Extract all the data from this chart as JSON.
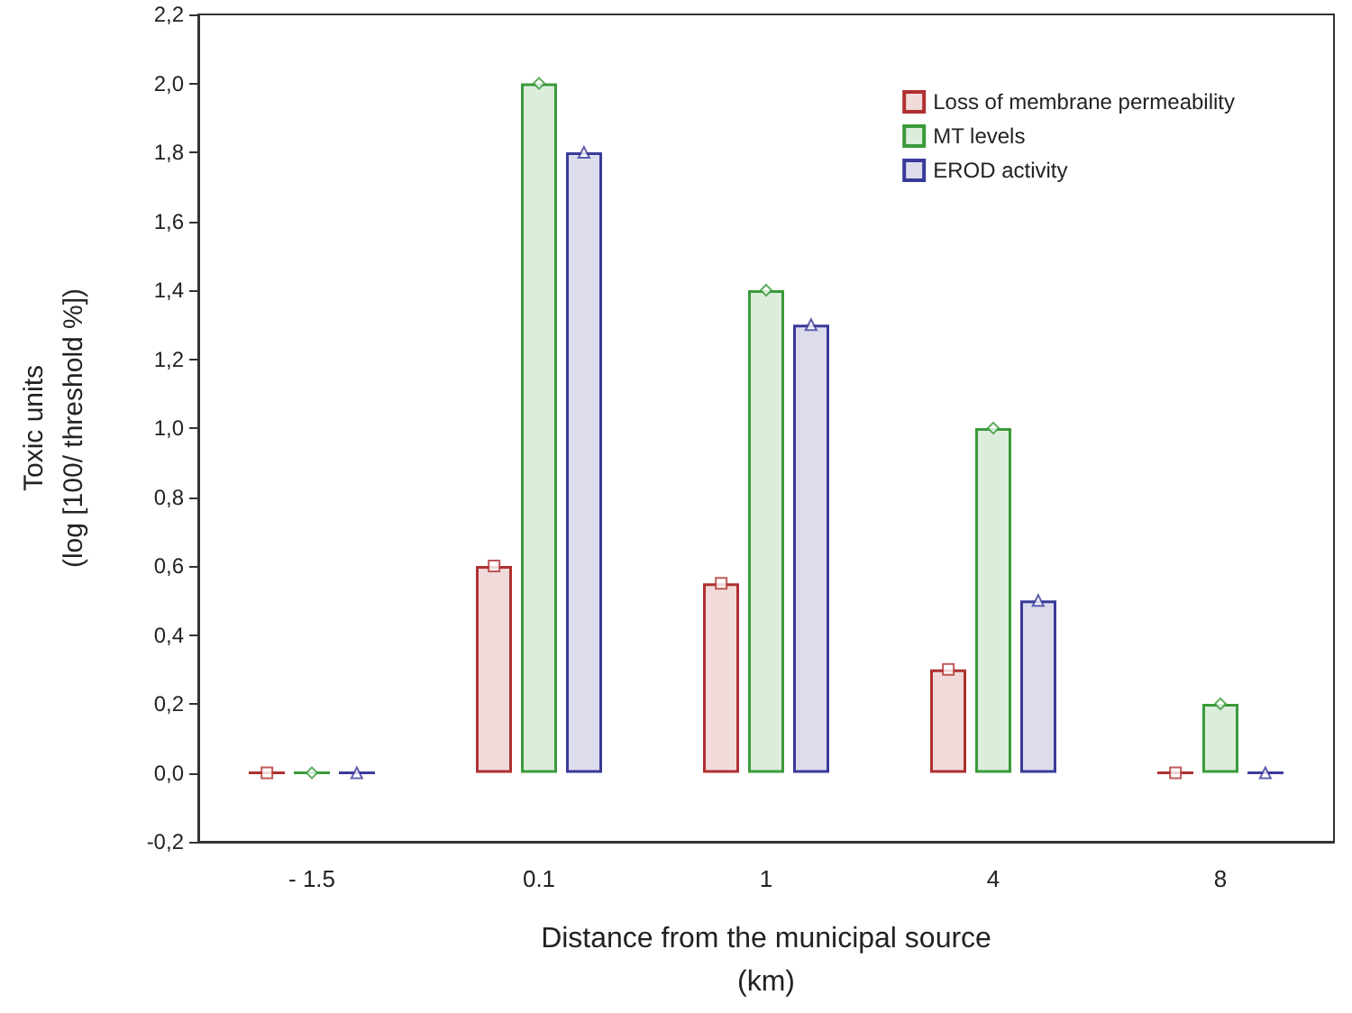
{
  "chart_data": {
    "type": "bar",
    "xlabel": "Distance from the municipal source\n(km)",
    "ylabel": "Toxic units\n(log [100/ threshold %])",
    "categories": [
      "- 1.5",
      "0.1",
      "1",
      "4",
      "8"
    ],
    "series": [
      {
        "name": "Loss of membrane permeability",
        "color": "#b03030",
        "values": [
          0,
          0.6,
          0.55,
          0.3,
          0
        ]
      },
      {
        "name": "MT levels",
        "color": "#3a9a3a",
        "values": [
          0,
          2.0,
          1.4,
          1.0,
          0.2
        ]
      },
      {
        "name": "EROD activity",
        "color": "#3a3a9a",
        "values": [
          0,
          1.8,
          1.3,
          0.5,
          0
        ]
      },
      {
        "type": "scatter",
        "color": "#b03030",
        "marker": "square",
        "x": [
          "- 1.5",
          "0.1",
          "1",
          "4",
          "8"
        ],
        "values": [
          0,
          0.6,
          0.55,
          0.3,
          0
        ]
      },
      {
        "type": "scatter",
        "color": "#3a9a3a",
        "marker": "diamond",
        "x": [
          "- 1.5",
          "0.1",
          "1",
          "4",
          "8"
        ],
        "values": [
          0,
          2.0,
          1.4,
          1.0,
          0.2
        ]
      },
      {
        "type": "scatter",
        "color": "#3a3a9a",
        "marker": "triangle",
        "x": [
          "- 1.5",
          "0.1",
          "1",
          "4",
          "8"
        ],
        "values": [
          0,
          1.8,
          1.3,
          0.5,
          0
        ]
      }
    ],
    "ylim": [
      -0.2,
      2.2
    ],
    "yticks": [
      {
        "value": -0.2,
        "label": "-0,2"
      },
      {
        "value": 0,
        "label": "0,0"
      },
      {
        "value": 0.2,
        "label": "0,2"
      },
      {
        "value": 0.4,
        "label": "0,4"
      },
      {
        "value": 0.6,
        "label": "0,6"
      },
      {
        "value": 0.8,
        "label": "0,8"
      },
      {
        "value": 1.0,
        "label": "1,0"
      },
      {
        "value": 1.2,
        "label": "1,2"
      },
      {
        "value": 1.4,
        "label": "1,4"
      },
      {
        "value": 1.6,
        "label": "1,6"
      },
      {
        "value": 1.8,
        "label": "1,8"
      },
      {
        "value": 2.0,
        "label": "2,0"
      },
      {
        "value": 2.2,
        "label": "2,2"
      }
    ],
    "grid": false,
    "legend": "top right"
  }
}
